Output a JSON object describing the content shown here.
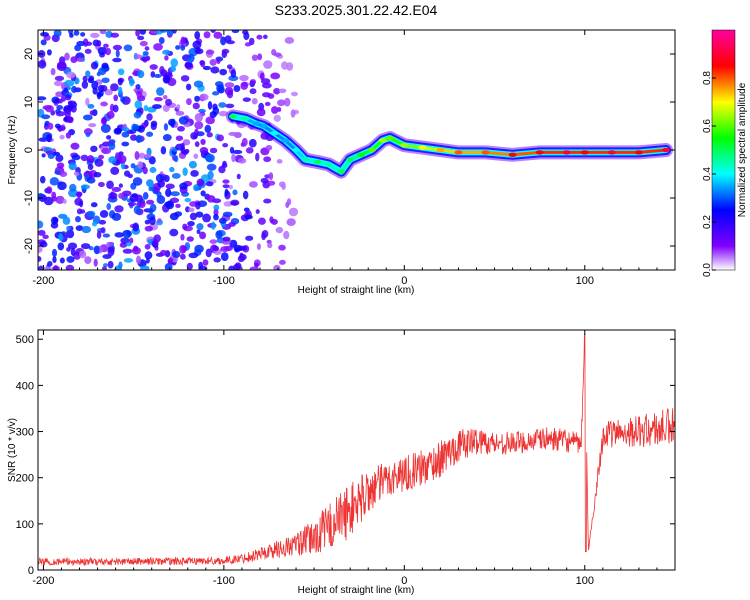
{
  "title": "S233.2025.301.22.42.E04",
  "chart_data": [
    {
      "type": "heatmap",
      "name": "spectrogram",
      "xlabel": "Height of straight line (km)",
      "ylabel": "Frequency (Hz)",
      "xlim": [
        -203,
        150
      ],
      "ylim": [
        -25,
        25
      ],
      "xticks": [
        -200,
        -100,
        0,
        100
      ],
      "yticks": [
        -20,
        -10,
        0,
        10,
        20
      ],
      "colorbar": {
        "label": "Normalized spectral amplitude",
        "range": [
          0,
          1
        ],
        "ticks": [
          0.0,
          0.2,
          0.4,
          0.6,
          0.8
        ],
        "tick_labels": [
          "0.0",
          "0.2",
          "0.4",
          "0.6",
          "0.8"
        ]
      },
      "noise_region": {
        "x_start": -203,
        "x_end": -60,
        "amplitude": [
          0.05,
          0.35
        ]
      },
      "signal_ridge": [
        {
          "x": -95,
          "y": 7,
          "amp": 0.45
        },
        {
          "x": -88,
          "y": 6.5,
          "amp": 0.4
        },
        {
          "x": -82,
          "y": 5.5,
          "amp": 0.3
        },
        {
          "x": -78,
          "y": 5,
          "amp": 0.3
        },
        {
          "x": -72,
          "y": 3.5,
          "amp": 0.35
        },
        {
          "x": -66,
          "y": 2,
          "amp": 0.3
        },
        {
          "x": -60,
          "y": 0,
          "amp": 0.35
        },
        {
          "x": -55,
          "y": -2,
          "amp": 0.4
        },
        {
          "x": -48,
          "y": -2.5,
          "amp": 0.45
        },
        {
          "x": -42,
          "y": -3,
          "amp": 0.4
        },
        {
          "x": -35,
          "y": -4.5,
          "amp": 0.45
        },
        {
          "x": -30,
          "y": -2,
          "amp": 0.45
        },
        {
          "x": -24,
          "y": -1,
          "amp": 0.5
        },
        {
          "x": -18,
          "y": 0,
          "amp": 0.55
        },
        {
          "x": -12,
          "y": 2,
          "amp": 0.6
        },
        {
          "x": -8,
          "y": 2.5,
          "amp": 0.55
        },
        {
          "x": 0,
          "y": 1,
          "amp": 0.6
        },
        {
          "x": 10,
          "y": 0.5,
          "amp": 0.65
        },
        {
          "x": 20,
          "y": 0,
          "amp": 0.7
        },
        {
          "x": 30,
          "y": -0.5,
          "amp": 0.75
        },
        {
          "x": 45,
          "y": -0.5,
          "amp": 0.75
        },
        {
          "x": 60,
          "y": -1,
          "amp": 0.8
        },
        {
          "x": 75,
          "y": -0.5,
          "amp": 0.8
        },
        {
          "x": 90,
          "y": -0.5,
          "amp": 0.85
        },
        {
          "x": 100,
          "y": -0.5,
          "amp": 0.8
        },
        {
          "x": 115,
          "y": -0.5,
          "amp": 0.85
        },
        {
          "x": 130,
          "y": -0.5,
          "amp": 0.8
        },
        {
          "x": 145,
          "y": 0,
          "amp": 0.85
        }
      ]
    },
    {
      "type": "line",
      "name": "snr",
      "xlabel": "Height of straight line (km)",
      "ylabel": "SNR (10 * v/v)",
      "xlim": [
        -203,
        150
      ],
      "ylim": [
        0,
        520
      ],
      "xticks": [
        -200,
        -100,
        0,
        100
      ],
      "yticks": [
        0,
        100,
        200,
        300,
        400,
        500
      ],
      "color": "#ee3333",
      "series": [
        {
          "name": "SNR",
          "x": [
            -203,
            -180,
            -160,
            -140,
            -120,
            -100,
            -90,
            -80,
            -70,
            -60,
            -50,
            -40,
            -30,
            -20,
            -10,
            0,
            10,
            20,
            30,
            40,
            50,
            60,
            70,
            80,
            90,
            98,
            100,
            102,
            110,
            120,
            130,
            140,
            150
          ],
          "y": [
            18,
            18,
            18,
            19,
            19,
            20,
            25,
            35,
            45,
            55,
            70,
            100,
            130,
            170,
            195,
            210,
            220,
            240,
            270,
            280,
            275,
            275,
            280,
            285,
            280,
            270,
            510,
            40,
            290,
            300,
            300,
            305,
            310
          ],
          "noise": [
            8,
            8,
            8,
            8,
            8,
            8,
            10,
            15,
            20,
            25,
            40,
            55,
            60,
            50,
            40,
            40,
            40,
            40,
            35,
            30,
            25,
            25,
            25,
            25,
            25,
            25,
            0,
            0,
            30,
            30,
            35,
            40,
            45
          ]
        }
      ]
    }
  ]
}
